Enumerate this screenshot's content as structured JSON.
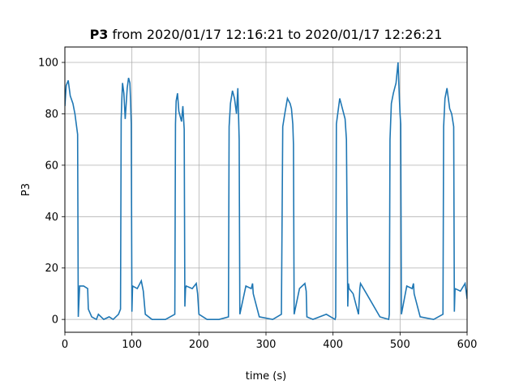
{
  "chart_data": {
    "type": "line",
    "title_bold": "P3",
    "title_rest": " from 2020/01/17 12:16:21 to 2020/01/17 12:26:21",
    "xlabel": "time (s)",
    "ylabel": "P3",
    "xlim": [
      0,
      600
    ],
    "ylim": [
      -5,
      106
    ],
    "xticks": [
      0,
      100,
      200,
      300,
      400,
      500,
      600
    ],
    "yticks": [
      0,
      20,
      40,
      60,
      80,
      100
    ],
    "grid": true,
    "line_color": "#1f77b4",
    "series": [
      {
        "x": [
          0,
          2,
          5,
          8,
          12,
          15,
          17,
          19,
          20,
          22,
          28,
          34,
          35,
          40,
          47,
          50,
          58,
          66,
          72,
          80,
          83,
          84,
          85,
          86,
          88,
          90,
          93,
          95,
          97,
          98,
          99,
          100,
          101,
          108,
          114,
          117,
          120,
          130,
          150,
          164,
          165,
          166,
          168,
          170,
          174,
          176,
          178,
          179,
          180,
          181,
          190,
          196,
          198,
          200,
          212,
          230,
          244,
          245,
          247,
          250,
          253,
          256,
          258,
          259,
          260,
          261,
          270,
          278,
          280,
          281,
          290,
          310,
          323,
          325,
          328,
          332,
          336,
          338,
          340,
          341,
          342,
          350,
          358,
          360,
          361,
          370,
          390,
          403,
          404,
          405,
          408,
          410,
          414,
          418,
          420,
          422,
          423,
          424,
          430,
          438,
          440,
          441,
          450,
          470,
          483,
          484,
          485,
          487,
          490,
          494,
          497,
          499,
          500,
          501,
          502,
          510,
          518,
          520,
          521,
          530,
          550,
          564,
          565,
          567,
          570,
          574,
          577,
          580,
          581,
          582,
          590,
          597,
          600
        ],
        "y": [
          83,
          91,
          93,
          87,
          84,
          80,
          76,
          72,
          1,
          13,
          13,
          12,
          4,
          1,
          0,
          2,
          0,
          1,
          0,
          2,
          4,
          78,
          86,
          92,
          88,
          78,
          90,
          94,
          92,
          85,
          76,
          3,
          13,
          12,
          15,
          11,
          2,
          0,
          0,
          2,
          76,
          85,
          88,
          81,
          77,
          83,
          74,
          5,
          12,
          13,
          12,
          14,
          10,
          2,
          0,
          0,
          1,
          75,
          84,
          89,
          86,
          80,
          90,
          80,
          70,
          2,
          13,
          12,
          14,
          10,
          1,
          0,
          2,
          75,
          80,
          86,
          84,
          82,
          76,
          68,
          2,
          12,
          14,
          11,
          1,
          0,
          2,
          0,
          1,
          76,
          82,
          86,
          82,
          78,
          70,
          5,
          14,
          12,
          10,
          2,
          12,
          14,
          10,
          1,
          0,
          2,
          70,
          84,
          88,
          92,
          100,
          86,
          80,
          76,
          2,
          13,
          12,
          14,
          10,
          1,
          0,
          2,
          75,
          86,
          90,
          82,
          80,
          75,
          3,
          12,
          11,
          14,
          8
        ]
      }
    ]
  }
}
